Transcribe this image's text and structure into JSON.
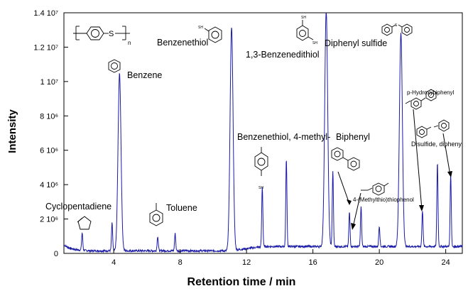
{
  "chart_data": {
    "type": "line",
    "title": "",
    "xlabel": "Retention time / min",
    "ylabel": "Intensity",
    "xlim": [
      1,
      25
    ],
    "ylim": [
      0,
      14000000
    ],
    "grid": false,
    "x_ticks": [
      {
        "value": 4,
        "label": "4"
      },
      {
        "value": 8,
        "label": "8"
      },
      {
        "value": 12,
        "label": "12"
      },
      {
        "value": 16,
        "label": "16"
      },
      {
        "value": 20,
        "label": "20"
      },
      {
        "value": 24,
        "label": "24"
      }
    ],
    "y_ticks": [
      {
        "value": 0,
        "label": "0"
      },
      {
        "value": 2000000,
        "label": "2 10⁶"
      },
      {
        "value": 4000000,
        "label": "4 10⁶"
      },
      {
        "value": 6000000,
        "label": "6 10⁶"
      },
      {
        "value": 8000000,
        "label": "8 10⁶"
      },
      {
        "value": 10000000,
        "label": "1 10⁷"
      },
      {
        "value": 12000000,
        "label": "1.2 10⁷"
      },
      {
        "value": 14000000,
        "label": "1.4 10⁷"
      }
    ],
    "series": [
      {
        "name": "",
        "color": "#1a1aa6",
        "baseline": 150000,
        "peaks": [
          {
            "x": 2.1,
            "y": 1000000
          },
          {
            "x": 3.9,
            "y": 1600000
          },
          {
            "x": 4.35,
            "y": 10300000
          },
          {
            "x": 6.65,
            "y": 850000
          },
          {
            "x": 7.7,
            "y": 1000000
          },
          {
            "x": 11.1,
            "y": 13000000
          },
          {
            "x": 12.95,
            "y": 3500000
          },
          {
            "x": 14.4,
            "y": 5100000
          },
          {
            "x": 16.8,
            "y": 13700000
          },
          {
            "x": 17.2,
            "y": 4400000
          },
          {
            "x": 18.2,
            "y": 2000000
          },
          {
            "x": 18.9,
            "y": 2300000
          },
          {
            "x": 20.0,
            "y": 1200000
          },
          {
            "x": 21.3,
            "y": 12400000
          },
          {
            "x": 22.6,
            "y": 2100000
          },
          {
            "x": 23.5,
            "y": 4900000
          },
          {
            "x": 24.3,
            "y": 4200000
          }
        ]
      }
    ],
    "annotations": [
      {
        "text": "Cyclopentadiene",
        "structure": "cyclopentadiene",
        "x": 2.1
      },
      {
        "text": "Benzene",
        "structure": "benzene",
        "x": 4.35
      },
      {
        "text": "Toluene",
        "structure": "toluene",
        "x": 6.65
      },
      {
        "text": "Benzenethiol",
        "structure": "benzenethiol",
        "x": 11.1
      },
      {
        "text": "Benzenethiol, 4-methyl-",
        "structure": "4-methylbenzenethiol",
        "x": 12.95
      },
      {
        "text": "1,3-Benzenedithiol",
        "structure": "1,3-benzenedithiol",
        "x": 16.8
      },
      {
        "text": "Diphenyl sulfide",
        "structure": "diphenyl-sulfide",
        "x": 21.3
      },
      {
        "text": "Biphenyl",
        "structure": "biphenyl",
        "x": 18.2
      },
      {
        "text": "4-(Methylthio)thiophenol",
        "structure": "4-methylthio-thiophenol",
        "x": 18.9
      },
      {
        "text": "p-Hydroxybiphenyl",
        "structure": "p-hydroxybiphenyl",
        "x": 22.6
      },
      {
        "text": "Disulfide, diphenyl",
        "structure": "diphenyl-disulfide",
        "x": 24.3
      }
    ],
    "polymer_structure": {
      "subscript": "n"
    }
  }
}
